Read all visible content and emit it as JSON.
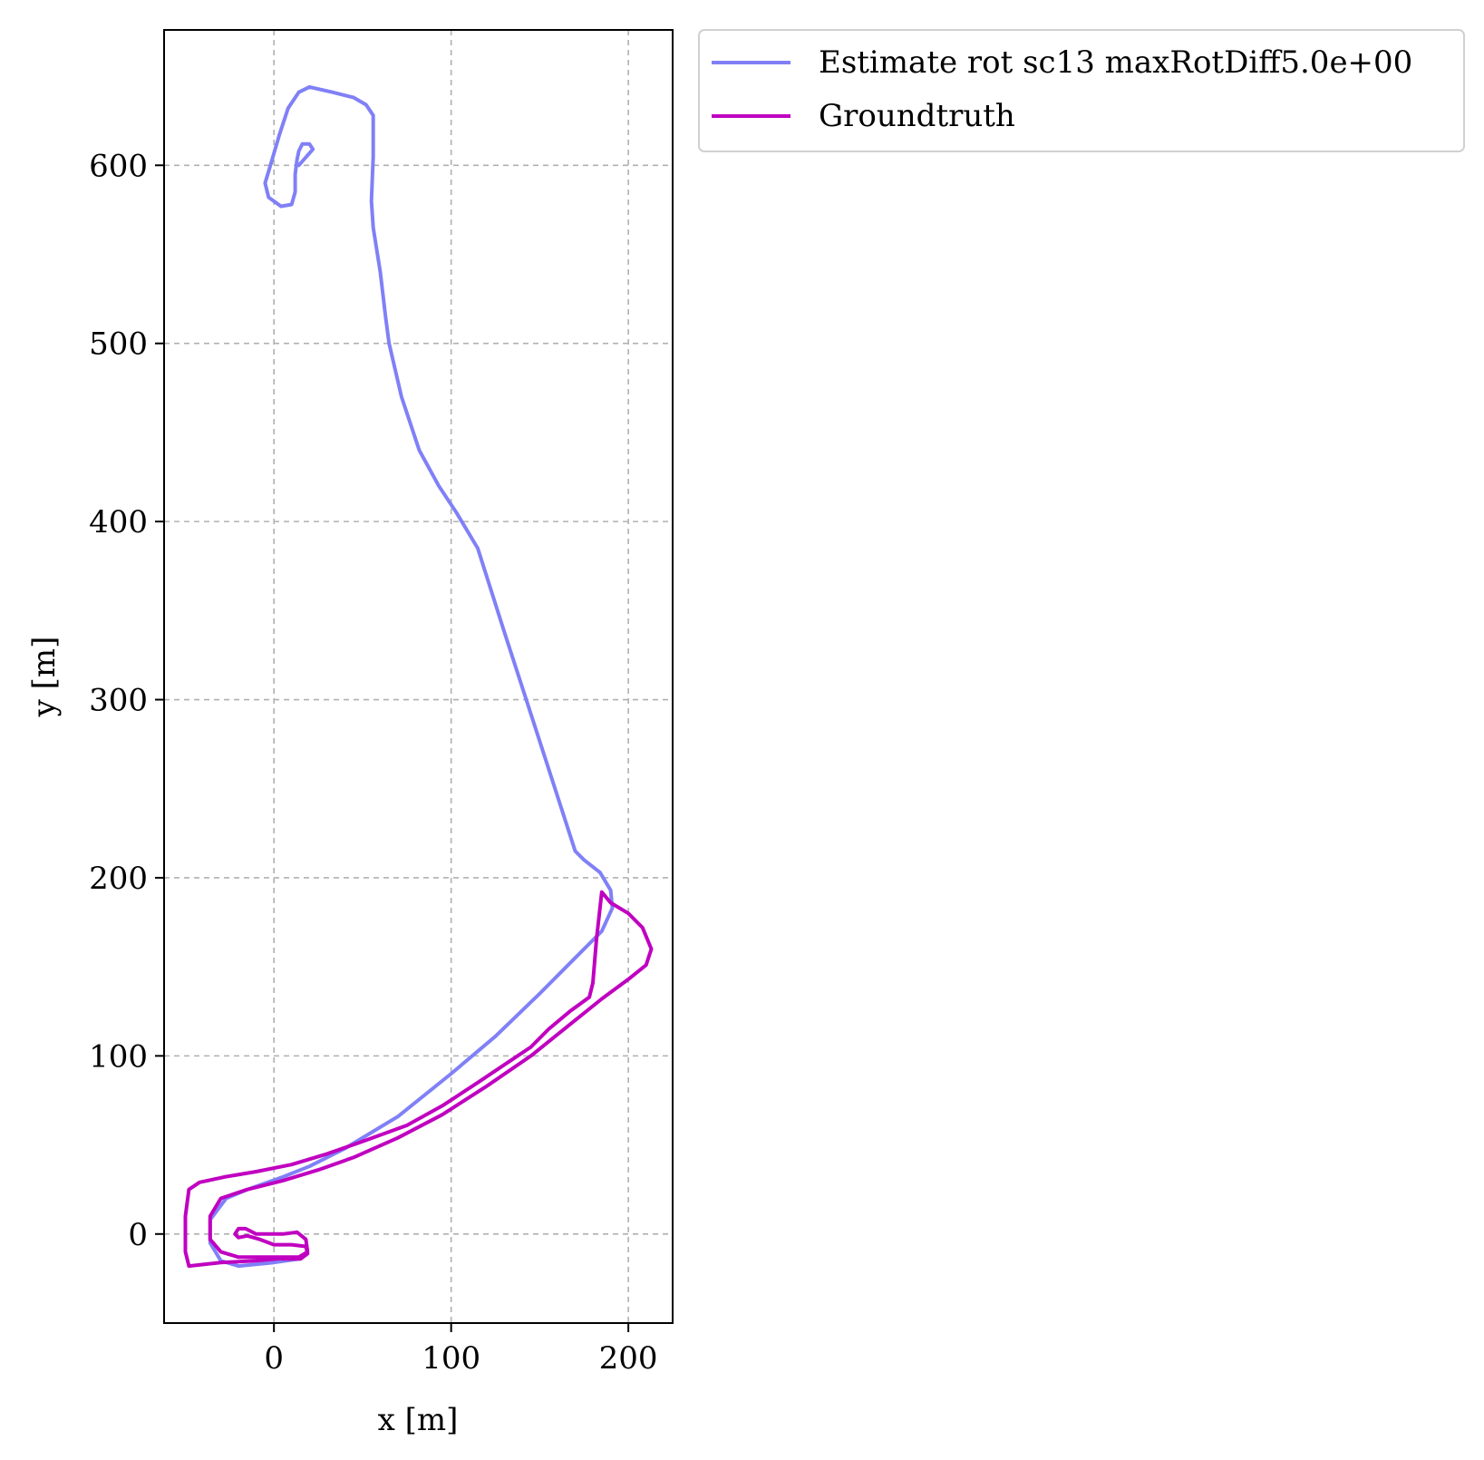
{
  "chart_data": {
    "type": "line",
    "title": "",
    "xlabel": "x [m]",
    "ylabel": "y [m]",
    "xlim": [
      -62,
      225
    ],
    "ylim": [
      -50,
      676
    ],
    "x_ticks": [
      0,
      100,
      200
    ],
    "y_ticks": [
      0,
      100,
      200,
      300,
      400,
      500,
      600
    ],
    "x_tick_labels": [
      "0",
      "100",
      "200"
    ],
    "y_tick_labels": [
      "0",
      "100",
      "200",
      "300",
      "400",
      "500",
      "600"
    ],
    "grid": true,
    "legend_position": "outside-top-right",
    "series": [
      {
        "name": "Estimate rot sc13 maxRotDiff5.0e+00",
        "color": "#8080f7",
        "points": [
          [
            14,
            600
          ],
          [
            22,
            609
          ],
          [
            20,
            612
          ],
          [
            16,
            612
          ],
          [
            14,
            608
          ],
          [
            13,
            603
          ],
          [
            12,
            595
          ],
          [
            12,
            585
          ],
          [
            10,
            578
          ],
          [
            4,
            577
          ],
          [
            -3,
            582
          ],
          [
            -5,
            590
          ],
          [
            -2,
            600
          ],
          [
            3,
            617
          ],
          [
            8,
            632
          ],
          [
            14,
            641
          ],
          [
            20,
            644
          ],
          [
            33,
            641
          ],
          [
            45,
            638
          ],
          [
            52,
            634
          ],
          [
            56,
            628
          ],
          [
            56,
            605
          ],
          [
            55,
            580
          ],
          [
            56,
            565
          ],
          [
            60,
            540
          ],
          [
            63,
            515
          ],
          [
            65,
            500
          ],
          [
            72,
            470
          ],
          [
            82,
            440
          ],
          [
            93,
            420
          ],
          [
            103,
            405
          ],
          [
            115,
            385
          ],
          [
            130,
            338
          ],
          [
            145,
            292
          ],
          [
            158,
            252
          ],
          [
            170,
            215
          ],
          [
            175,
            210
          ],
          [
            184,
            203
          ],
          [
            190,
            193
          ],
          [
            191,
            183
          ],
          [
            185,
            170
          ],
          [
            170,
            155
          ],
          [
            150,
            135
          ],
          [
            125,
            111
          ],
          [
            100,
            90
          ],
          [
            70,
            66
          ],
          [
            40,
            48
          ],
          [
            20,
            38
          ],
          [
            5,
            32
          ],
          [
            -15,
            25
          ],
          [
            -27,
            20
          ],
          [
            -36,
            8
          ],
          [
            -36,
            -5
          ],
          [
            -30,
            -15
          ],
          [
            -20,
            -18
          ],
          [
            0,
            -16
          ],
          [
            14,
            -14
          ]
        ]
      },
      {
        "name": "Groundtruth",
        "color": "#c000c0",
        "points": [
          [
            13,
            -13
          ],
          [
            -10,
            -15
          ],
          [
            -30,
            -16
          ],
          [
            -48,
            -18
          ],
          [
            -50,
            -10
          ],
          [
            -50,
            10
          ],
          [
            -48,
            25
          ],
          [
            -42,
            29
          ],
          [
            -28,
            32
          ],
          [
            -10,
            35
          ],
          [
            10,
            39
          ],
          [
            30,
            45
          ],
          [
            50,
            52
          ],
          [
            75,
            61
          ],
          [
            95,
            72
          ],
          [
            115,
            85
          ],
          [
            130,
            95
          ],
          [
            145,
            105
          ],
          [
            155,
            115
          ],
          [
            167,
            125
          ],
          [
            178,
            133
          ],
          [
            180,
            141
          ],
          [
            182,
            165
          ],
          [
            185,
            192
          ],
          [
            190,
            186
          ],
          [
            200,
            180
          ],
          [
            208,
            172
          ],
          [
            213,
            160
          ],
          [
            210,
            151
          ],
          [
            200,
            143
          ],
          [
            185,
            132
          ],
          [
            165,
            116
          ],
          [
            145,
            100
          ],
          [
            120,
            83
          ],
          [
            95,
            67
          ],
          [
            70,
            54
          ],
          [
            45,
            43
          ],
          [
            25,
            36
          ],
          [
            5,
            30
          ],
          [
            -15,
            25
          ],
          [
            -30,
            20
          ],
          [
            -36,
            10
          ],
          [
            -36,
            -3
          ],
          [
            -30,
            -10
          ],
          [
            -20,
            -13
          ],
          [
            0,
            -13
          ],
          [
            14,
            -13
          ],
          [
            19,
            -10
          ],
          [
            18,
            -3
          ],
          [
            13,
            1
          ],
          [
            5,
            0
          ],
          [
            -10,
            0
          ],
          [
            -16,
            3
          ],
          [
            -20,
            3
          ],
          [
            -22,
            0
          ],
          [
            -20,
            -2
          ],
          [
            -15,
            -1
          ],
          [
            -8,
            -3
          ],
          [
            0,
            -6
          ],
          [
            10,
            -6
          ],
          [
            18,
            -7
          ],
          [
            19,
            -11
          ],
          [
            15,
            -14
          ],
          [
            5,
            -14
          ]
        ]
      }
    ]
  }
}
